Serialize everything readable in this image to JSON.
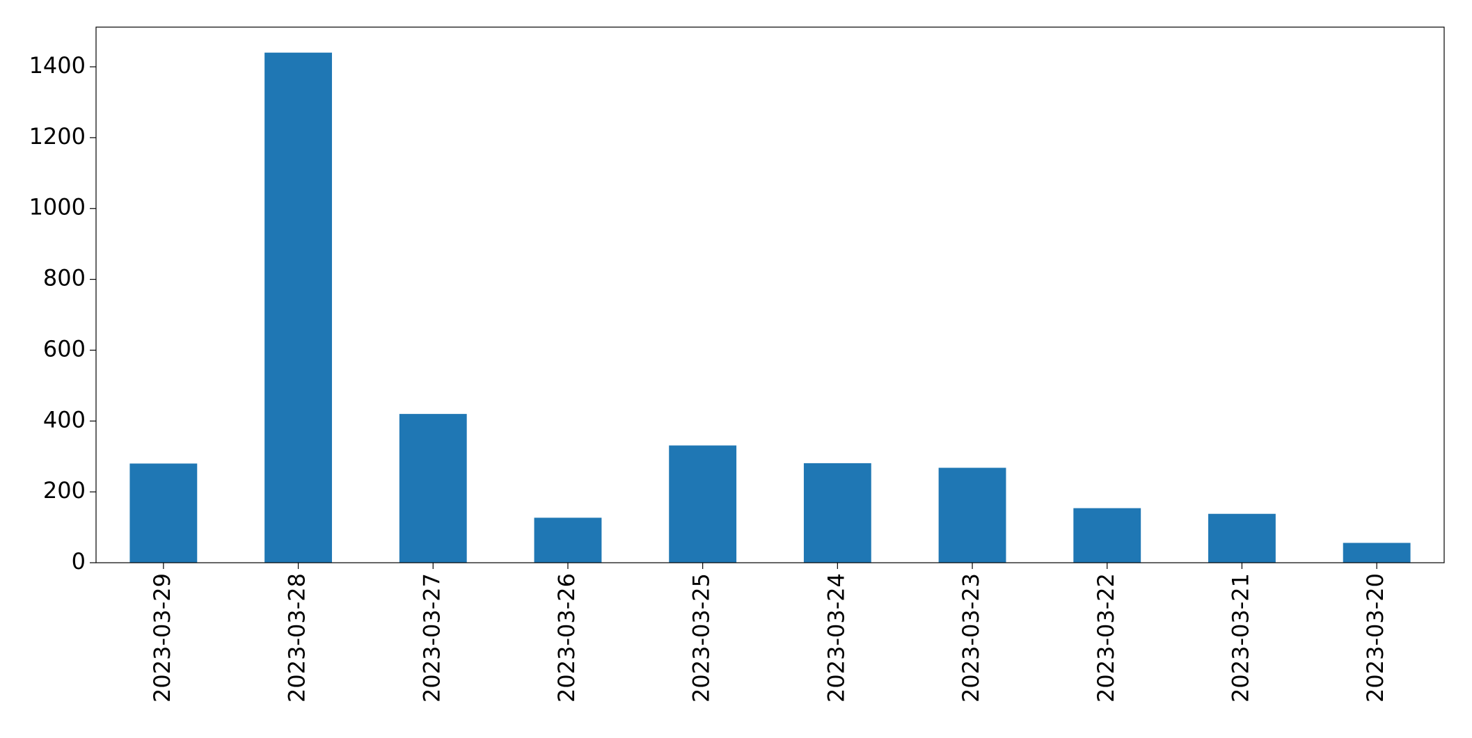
{
  "chart_data": {
    "type": "bar",
    "categories": [
      "2023-03-29",
      "2023-03-28",
      "2023-03-27",
      "2023-03-26",
      "2023-03-25",
      "2023-03-24",
      "2023-03-23",
      "2023-03-22",
      "2023-03-21",
      "2023-03-20"
    ],
    "values": [
      280,
      1440,
      420,
      127,
      331,
      281,
      268,
      154,
      138,
      56
    ],
    "color": "#1f77b4",
    "ylim": [
      0,
      1512
    ],
    "yticks": [
      0,
      200,
      400,
      600,
      800,
      1000,
      1200,
      1400
    ],
    "grid": false
  }
}
